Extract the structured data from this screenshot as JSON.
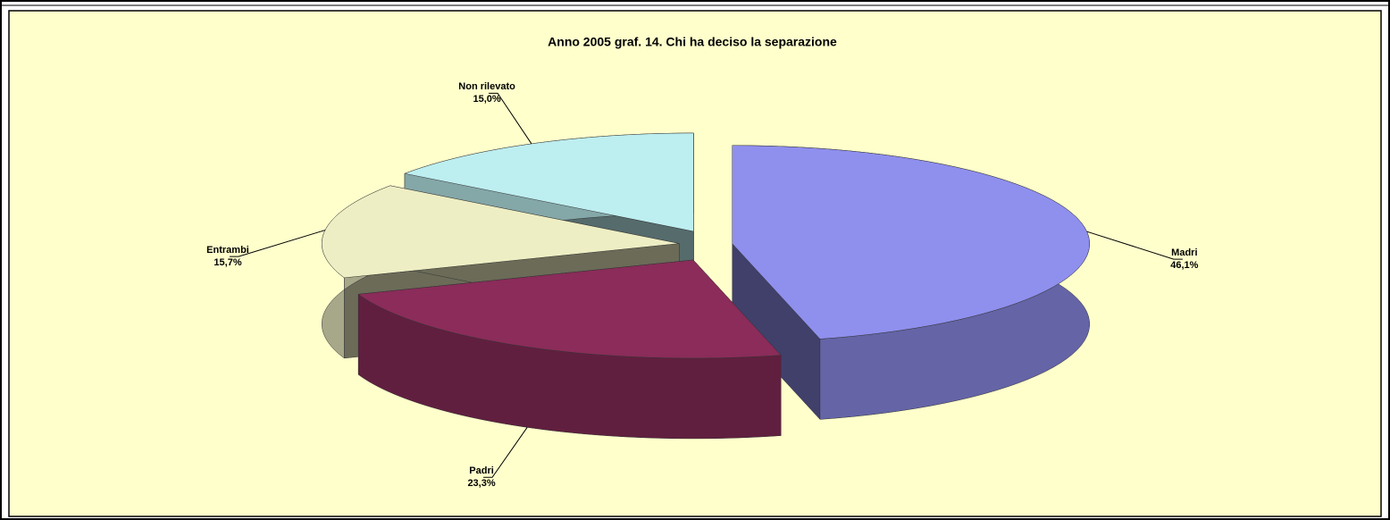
{
  "chart_data": {
    "type": "pie",
    "title": "Anno 2005 graf. 14. Chi ha deciso la separazione",
    "categories": [
      "Madri",
      "Padri",
      "Entrambi",
      "Non rilevato"
    ],
    "values": [
      46.1,
      23.3,
      15.7,
      15.0
    ],
    "value_labels": [
      "46,1%",
      "23,3%",
      "15,7%",
      "15,0%"
    ],
    "colors": [
      "#8f8fee",
      "#8b2c5a",
      "#eeeec4",
      "#bdeef0"
    ]
  }
}
